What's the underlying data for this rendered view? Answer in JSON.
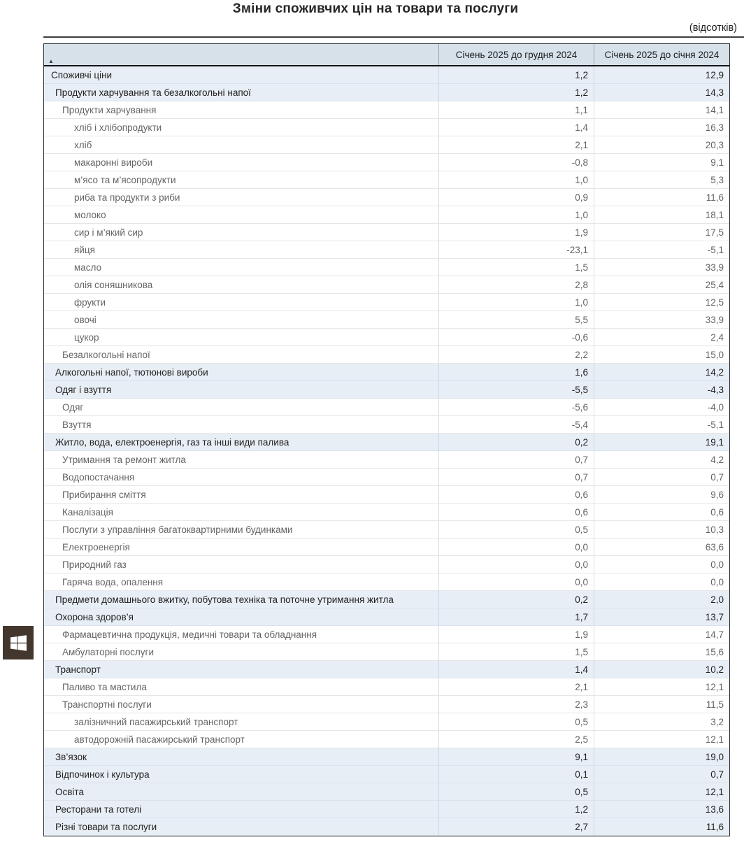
{
  "page": {
    "title": "Зміни споживчих цін на товари та послуги",
    "units_note": "(відсотків)"
  },
  "table": {
    "sort_indicator": "▲",
    "columns": {
      "category": "",
      "col1": "Січень 2025 до грудня 2024",
      "col2": "Січень 2025 до січня 2024"
    },
    "rows": [
      {
        "label": "Споживчі ціни",
        "level": 0,
        "values": [
          "1,2",
          "12,9"
        ]
      },
      {
        "label": "Продукти харчування та безалкогольні напої",
        "level": 1,
        "values": [
          "1,2",
          "14,3"
        ]
      },
      {
        "label": "Продукти харчування",
        "level": 2,
        "values": [
          "1,1",
          "14,1"
        ]
      },
      {
        "label": "хліб і хлібопродукти",
        "level": 3,
        "values": [
          "1,4",
          "16,3"
        ]
      },
      {
        "label": "хліб",
        "level": 3,
        "values": [
          "2,1",
          "20,3"
        ]
      },
      {
        "label": "макаронні вироби",
        "level": 3,
        "values": [
          "-0,8",
          "9,1"
        ]
      },
      {
        "label": "м’ясо та м’ясопродукти",
        "level": 3,
        "values": [
          "1,0",
          "5,3"
        ]
      },
      {
        "label": "риба та продукти з риби",
        "level": 3,
        "values": [
          "0,9",
          "11,6"
        ]
      },
      {
        "label": "молоко",
        "level": 3,
        "values": [
          "1,0",
          "18,1"
        ]
      },
      {
        "label": "сир і м’який сир",
        "level": 3,
        "values": [
          "1,9",
          "17,5"
        ]
      },
      {
        "label": "яйця",
        "level": 3,
        "values": [
          "-23,1",
          "-5,1"
        ]
      },
      {
        "label": "масло",
        "level": 3,
        "values": [
          "1,5",
          "33,9"
        ]
      },
      {
        "label": "олія соняшникова",
        "level": 3,
        "values": [
          "2,8",
          "25,4"
        ]
      },
      {
        "label": "фрукти",
        "level": 3,
        "values": [
          "1,0",
          "12,5"
        ]
      },
      {
        "label": "овочі",
        "level": 3,
        "values": [
          "5,5",
          "33,9"
        ]
      },
      {
        "label": "цукор",
        "level": 3,
        "values": [
          "-0,6",
          "2,4"
        ]
      },
      {
        "label": "Безалкогольні напої",
        "level": 2,
        "values": [
          "2,2",
          "15,0"
        ]
      },
      {
        "label": "Алкогольні напої, тютюнові вироби",
        "level": 1,
        "values": [
          "1,6",
          "14,2"
        ]
      },
      {
        "label": "Одяг і взуття",
        "level": 1,
        "values": [
          "-5,5",
          "-4,3"
        ]
      },
      {
        "label": "Одяг",
        "level": 2,
        "values": [
          "-5,6",
          "-4,0"
        ]
      },
      {
        "label": "Взуття",
        "level": 2,
        "values": [
          "-5,4",
          "-5,1"
        ]
      },
      {
        "label": "Житло, вода, електроенергія, газ та інші види палива",
        "level": 1,
        "values": [
          "0,2",
          "19,1"
        ]
      },
      {
        "label": "Утримання та ремонт житла",
        "level": 2,
        "values": [
          "0,7",
          "4,2"
        ]
      },
      {
        "label": "Водопостачання",
        "level": 2,
        "values": [
          "0,7",
          "0,7"
        ]
      },
      {
        "label": "Прибирання сміття",
        "level": 2,
        "values": [
          "0,6",
          "9,6"
        ]
      },
      {
        "label": "Каналізація",
        "level": 2,
        "values": [
          "0,6",
          "0,6"
        ]
      },
      {
        "label": "Послуги з управління багатоквартирними будинками",
        "level": 2,
        "values": [
          "0,5",
          "10,3"
        ]
      },
      {
        "label": "Електроенергія",
        "level": 2,
        "values": [
          "0,0",
          "63,6"
        ]
      },
      {
        "label": "Природний газ",
        "level": 2,
        "values": [
          "0,0",
          "0,0"
        ]
      },
      {
        "label": "Гаряча вода, опалення",
        "level": 2,
        "values": [
          "0,0",
          "0,0"
        ]
      },
      {
        "label": "Предмети домашнього вжитку, побутова техніка та поточне утримання житла",
        "level": 1,
        "values": [
          "0,2",
          "2,0"
        ]
      },
      {
        "label": "Охорона здоров’я",
        "level": 1,
        "values": [
          "1,7",
          "13,7"
        ]
      },
      {
        "label": "Фармацевтична продукція, медичні товари та обладнання",
        "level": 2,
        "values": [
          "1,9",
          "14,7"
        ]
      },
      {
        "label": "Амбулаторні послуги",
        "level": 2,
        "values": [
          "1,5",
          "15,6"
        ]
      },
      {
        "label": "Транспорт",
        "level": 1,
        "values": [
          "1,4",
          "10,2"
        ]
      },
      {
        "label": "Паливо та мастила",
        "level": 2,
        "values": [
          "2,1",
          "12,1"
        ]
      },
      {
        "label": "Транспортні послуги",
        "level": 2,
        "values": [
          "2,3",
          "11,5"
        ]
      },
      {
        "label": "залізничний пасажирський транспорт",
        "level": 3,
        "values": [
          "0,5",
          "3,2"
        ]
      },
      {
        "label": "автодорожній пасажирський транспорт",
        "level": 3,
        "values": [
          "2,5",
          "12,1"
        ]
      },
      {
        "label": "Зв’язок",
        "level": 1,
        "values": [
          "9,1",
          "19,0"
        ]
      },
      {
        "label": "Відпочинок і культура",
        "level": 1,
        "values": [
          "0,1",
          "0,7"
        ]
      },
      {
        "label": "Освіта",
        "level": 1,
        "values": [
          "0,5",
          "12,1"
        ]
      },
      {
        "label": "Ресторани та готелі",
        "level": 1,
        "values": [
          "1,2",
          "13,6"
        ]
      },
      {
        "label": "Різні товари та послуги",
        "level": 1,
        "values": [
          "2,7",
          "11,6"
        ]
      }
    ]
  },
  "taskbar": {
    "start_button": "windows-logo"
  },
  "colors": {
    "header_bg": "#d6e1ea",
    "group_row_bg": "#e8eef5",
    "group_row_text": "#212121",
    "detail_row_text": "#646464",
    "start_button_bg": "#42362d"
  }
}
